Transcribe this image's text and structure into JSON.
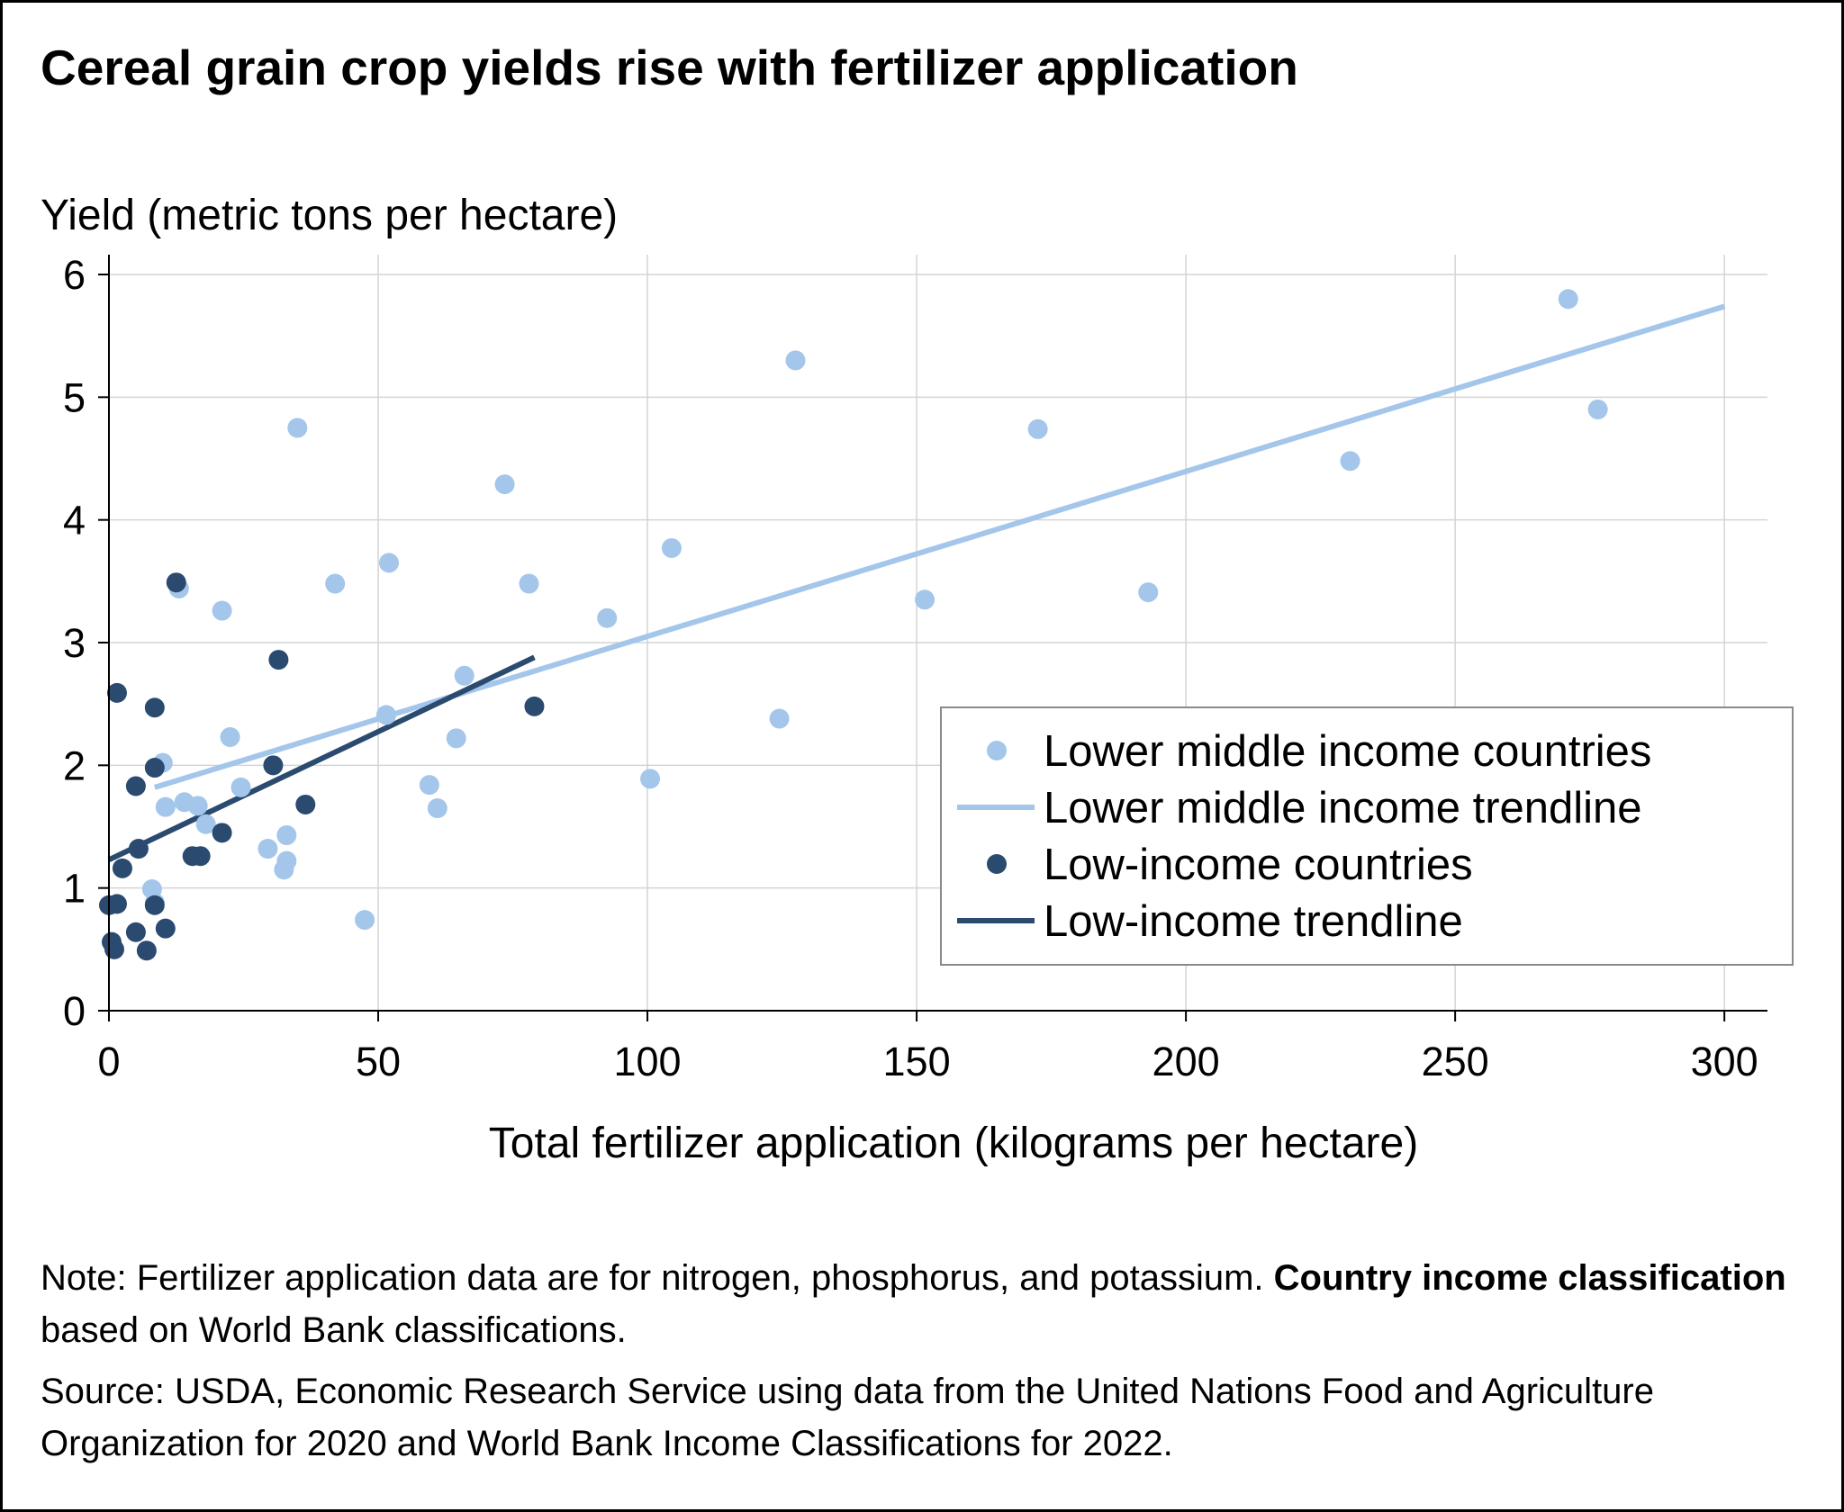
{
  "title": "Cereal grain crop yields rise with fertilizer application",
  "note": {
    "prefix": "Note: Fertilizer application data are for nitrogen, phosphorus, and potassium. ",
    "bold": "Country income classification",
    "suffix": " based on World Bank classifications."
  },
  "source": "Source: USDA, Economic Research Service using data from the United Nations Food and Agriculture Organization for 2020 and World Bank Income Classifications for 2022.",
  "colors": {
    "lower_middle": "#a3c6ea",
    "low": "#2b4a70",
    "grid": "#d4d4d4",
    "axis": "#000000"
  },
  "chart_data": {
    "type": "scatter",
    "xlabel": "Total fertilizer application (kilograms per hectare)",
    "ylabel": "Yield (metric tons per hectare)",
    "xlim": [
      0,
      308
    ],
    "ylim": [
      0,
      6
    ],
    "xticks": [
      0,
      50,
      100,
      150,
      200,
      250,
      300
    ],
    "yticks": [
      0,
      1,
      2,
      3,
      4,
      5,
      6
    ],
    "grid": true,
    "legend_position": "right",
    "legend": [
      {
        "label": "Lower middle income countries",
        "kind": "marker",
        "color": "#a3c6ea"
      },
      {
        "label": "Lower middle income trendline",
        "kind": "line",
        "color": "#a3c6ea"
      },
      {
        "label": "Low-income countries",
        "kind": "marker",
        "color": "#2b4a70"
      },
      {
        "label": "Low-income trendline",
        "kind": "line",
        "color": "#2b4a70"
      }
    ],
    "series": [
      {
        "name": "Lower middle income countries",
        "color": "#a3c6ea",
        "points": [
          [
            35,
            4.75
          ],
          [
            127.5,
            5.3
          ],
          [
            172.5,
            4.74
          ],
          [
            271,
            5.8
          ],
          [
            276.5,
            4.9
          ],
          [
            230.5,
            4.48
          ],
          [
            73.5,
            4.29
          ],
          [
            104.5,
            3.77
          ],
          [
            52,
            3.65
          ],
          [
            42,
            3.48
          ],
          [
            78,
            3.48
          ],
          [
            13,
            3.44
          ],
          [
            21,
            3.26
          ],
          [
            92.5,
            3.2
          ],
          [
            151.5,
            3.35
          ],
          [
            193,
            3.41
          ],
          [
            66,
            2.73
          ],
          [
            51.5,
            2.41
          ],
          [
            124.5,
            2.38
          ],
          [
            22.5,
            2.23
          ],
          [
            64.5,
            2.22
          ],
          [
            10,
            2.02
          ],
          [
            100.5,
            1.89
          ],
          [
            59.5,
            1.84
          ],
          [
            24.5,
            1.82
          ],
          [
            61,
            1.65
          ],
          [
            14,
            1.7
          ],
          [
            16.5,
            1.67
          ],
          [
            10.5,
            1.66
          ],
          [
            18,
            1.52
          ],
          [
            33,
            1.43
          ],
          [
            29.5,
            1.32
          ],
          [
            33,
            1.22
          ],
          [
            32.5,
            1.15
          ],
          [
            8,
            0.99
          ],
          [
            8.5,
            0.88
          ],
          [
            47.5,
            0.74
          ]
        ]
      },
      {
        "name": "Lower middle income trendline",
        "color": "#a3c6ea",
        "line": [
          [
            8.5,
            1.82
          ],
          [
            300,
            5.74
          ]
        ]
      },
      {
        "name": "Low-income countries",
        "color": "#2b4a70",
        "points": [
          [
            12.5,
            3.49
          ],
          [
            31.5,
            2.86
          ],
          [
            1.5,
            2.59
          ],
          [
            8.5,
            2.47
          ],
          [
            79,
            2.48
          ],
          [
            30.5,
            2.0
          ],
          [
            8.5,
            1.98
          ],
          [
            5,
            1.83
          ],
          [
            36.5,
            1.68
          ],
          [
            21,
            1.45
          ],
          [
            5.5,
            1.32
          ],
          [
            15.5,
            1.26
          ],
          [
            17,
            1.26
          ],
          [
            2.5,
            1.16
          ],
          [
            0,
            0.86
          ],
          [
            1.5,
            0.87
          ],
          [
            8.5,
            0.86
          ],
          [
            5,
            0.64
          ],
          [
            10.5,
            0.67
          ],
          [
            0.5,
            0.56
          ],
          [
            1,
            0.5
          ],
          [
            7,
            0.49
          ]
        ]
      },
      {
        "name": "Low-income trendline",
        "color": "#2b4a70",
        "line": [
          [
            0,
            1.23
          ],
          [
            79,
            2.88
          ]
        ]
      }
    ]
  }
}
